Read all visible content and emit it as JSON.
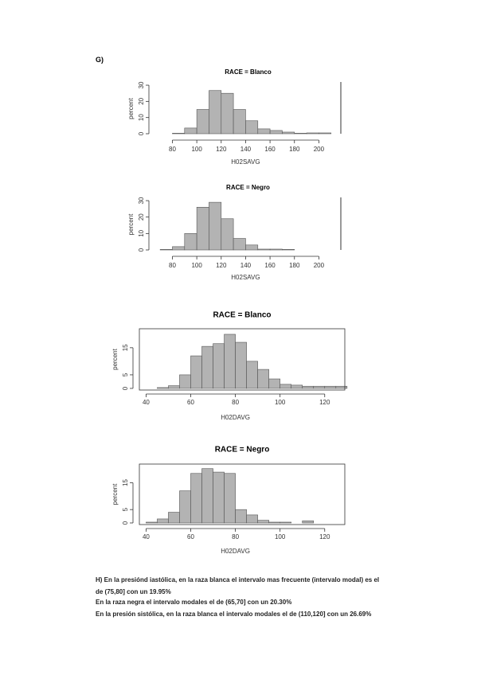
{
  "section_label": "G)",
  "chart_data": [
    {
      "type": "histogram",
      "title": "RACE = Blanco",
      "xlabel": "H02SAVG",
      "ylabel": "percent",
      "color": "#b3b3b3",
      "bins": [
        80,
        90,
        100,
        110,
        120,
        130,
        140,
        150,
        160,
        170,
        180,
        190,
        200,
        210
      ],
      "values": [
        0.3,
        3.5,
        15,
        26.7,
        25,
        15,
        8,
        3,
        2,
        1,
        0.3,
        0.5,
        0.5
      ],
      "xlim": [
        66,
        218
      ],
      "ylim": [
        0,
        31
      ],
      "xticks": [
        80,
        100,
        120,
        140,
        160,
        180,
        200
      ],
      "yticks": [
        0,
        10,
        20,
        30
      ]
    },
    {
      "type": "histogram",
      "title": "RACE = Negro",
      "xlabel": "H02SAVG",
      "ylabel": "percent",
      "color": "#b3b3b3",
      "bins": [
        70,
        80,
        90,
        100,
        110,
        120,
        130,
        140,
        150,
        160,
        170,
        180
      ],
      "values": [
        0.3,
        2,
        10,
        26,
        29,
        19,
        7,
        3,
        0.5,
        0.5,
        0.3
      ],
      "xlim": [
        66,
        218
      ],
      "ylim": [
        0,
        31
      ],
      "xticks": [
        80,
        100,
        120,
        140,
        160,
        180,
        200
      ],
      "yticks": [
        0,
        10,
        20,
        30
      ]
    },
    {
      "type": "histogram",
      "title": "RACE = Blanco",
      "xlabel": "H02DAVG",
      "ylabel": "percent",
      "color": "#b3b3b3",
      "bins": [
        45,
        50,
        55,
        60,
        65,
        70,
        75,
        80,
        85,
        90,
        95,
        100,
        105,
        110,
        115,
        120,
        125,
        130
      ],
      "values": [
        0.3,
        1,
        5,
        12,
        15.5,
        16.5,
        19.95,
        17,
        10,
        7,
        3.5,
        1.5,
        1.2,
        0.8,
        0.8,
        0.8,
        0.8
      ],
      "xlim": [
        37,
        129
      ],
      "ylim": [
        -0.6,
        22
      ],
      "xticks": [
        40,
        60,
        80,
        100,
        120
      ],
      "yticks": [
        0,
        5,
        15
      ]
    },
    {
      "type": "histogram",
      "title": "RACE = Negro",
      "xlabel": "H02DAVG",
      "ylabel": "percent",
      "color": "#b3b3b3",
      "bins": [
        40,
        45,
        50,
        55,
        60,
        65,
        70,
        75,
        80,
        85,
        90,
        95,
        100,
        105,
        110,
        115,
        120
      ],
      "values": [
        0.3,
        1.5,
        4,
        12,
        18.5,
        20.3,
        19,
        18.5,
        5,
        3,
        1,
        0.3,
        0.3,
        0,
        0.8,
        0
      ],
      "xlim": [
        37,
        129
      ],
      "ylim": [
        -0.6,
        22
      ],
      "xticks": [
        40,
        60,
        80,
        100,
        120
      ],
      "yticks": [
        0,
        5,
        15
      ]
    }
  ],
  "notes": [
    "H) En la presiónd iastólica, en la raza blanca el intervalo mas frecuente (intervalo modal) es el",
    "de (75,80] con un 19.95%",
    "En la raza negra el intervalo modales el de (65,70] con un 20.30%",
    "En la presión sistólica, en la raza blanca el intervalo modales el de (110,120] con un 26.69%"
  ]
}
